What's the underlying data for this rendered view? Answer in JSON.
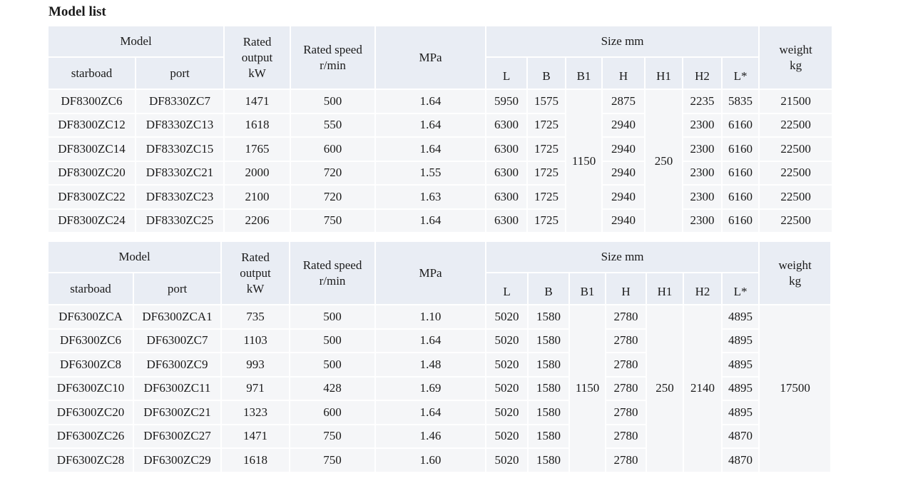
{
  "page_title": "Model list",
  "tables": [
    {
      "header": {
        "model": "Model",
        "starboard": "starboad",
        "port": "port",
        "rated_output": [
          "Rated",
          "output",
          "kW"
        ],
        "rated_speed": [
          "Rated speed",
          "r/min"
        ],
        "pressure": "MPa",
        "size": "Size mm",
        "size_cols": [
          "L",
          "B",
          "B1",
          "H",
          "H1",
          "H2",
          "L*"
        ],
        "weight": [
          "weight",
          "kg"
        ]
      },
      "shared": {
        "B1": "1150",
        "H1": "250"
      },
      "rows": [
        {
          "starboard": "DF8300ZC6",
          "port": "DF8330ZC7",
          "output": "1471",
          "speed": "500",
          "mpa": "1.64",
          "L": "5950",
          "B": "1575",
          "H": "2875",
          "H2": "2235",
          "Lstar": "5835",
          "weight": "21500"
        },
        {
          "starboard": "DF8300ZC12",
          "port": "DF8330ZC13",
          "output": "1618",
          "speed": "550",
          "mpa": "1.64",
          "L": "6300",
          "B": "1725",
          "H": "2940",
          "H2": "2300",
          "Lstar": "6160",
          "weight": "22500"
        },
        {
          "starboard": "DF8300ZC14",
          "port": "DF8330ZC15",
          "output": "1765",
          "speed": "600",
          "mpa": "1.64",
          "L": "6300",
          "B": "1725",
          "H": "2940",
          "H2": "2300",
          "Lstar": "6160",
          "weight": "22500"
        },
        {
          "starboard": "DF8300ZC20",
          "port": "DF8330ZC21",
          "output": "2000",
          "speed": "720",
          "mpa": "1.55",
          "L": "6300",
          "B": "1725",
          "H": "2940",
          "H2": "2300",
          "Lstar": "6160",
          "weight": "22500"
        },
        {
          "starboard": "DF8300ZC22",
          "port": "DF8330ZC23",
          "output": "2100",
          "speed": "720",
          "mpa": "1.63",
          "L": "6300",
          "B": "1725",
          "H": "2940",
          "H2": "2300",
          "Lstar": "6160",
          "weight": "22500"
        },
        {
          "starboard": "DF8300ZC24",
          "port": "DF8330ZC25",
          "output": "2206",
          "speed": "750",
          "mpa": "1.64",
          "L": "6300",
          "B": "1725",
          "H": "2940",
          "H2": "2300",
          "Lstar": "6160",
          "weight": "22500"
        }
      ]
    },
    {
      "header": {
        "model": "Model",
        "starboard": "starboad",
        "port": "port",
        "rated_output": [
          "Rated",
          "output",
          "kW"
        ],
        "rated_speed": [
          "Rated speed",
          "r/min"
        ],
        "pressure": "MPa",
        "size": "Size mm",
        "size_cols": [
          "L",
          "B",
          "B1",
          "H",
          "H1",
          "H2",
          "L*"
        ],
        "weight": [
          "weight",
          "kg"
        ]
      },
      "shared": {
        "B1": "1150",
        "H1": "250",
        "H2": "2140",
        "weight": "17500"
      },
      "rows": [
        {
          "starboard": "DF6300ZCA",
          "port": "DF6300ZCA1",
          "output": "735",
          "speed": "500",
          "mpa": "1.10",
          "L": "5020",
          "B": "1580",
          "H": "2780",
          "Lstar": "4895"
        },
        {
          "starboard": "DF6300ZC6",
          "port": "DF6300ZC7",
          "output": "1103",
          "speed": "500",
          "mpa": "1.64",
          "L": "5020",
          "B": "1580",
          "H": "2780",
          "Lstar": "4895"
        },
        {
          "starboard": "DF6300ZC8",
          "port": "DF6300ZC9",
          "output": "993",
          "speed": "500",
          "mpa": "1.48",
          "L": "5020",
          "B": "1580",
          "H": "2780",
          "Lstar": "4895"
        },
        {
          "starboard": "DF6300ZC10",
          "port": "DF6300ZC11",
          "output": "971",
          "speed": "428",
          "mpa": "1.69",
          "L": "5020",
          "B": "1580",
          "H": "2780",
          "Lstar": "4895"
        },
        {
          "starboard": "DF6300ZC20",
          "port": "DF6300ZC21",
          "output": "1323",
          "speed": "600",
          "mpa": "1.64",
          "L": "5020",
          "B": "1580",
          "H": "2780",
          "Lstar": "4895"
        },
        {
          "starboard": "DF6300ZC26",
          "port": "DF6300ZC27",
          "output": "1471",
          "speed": "750",
          "mpa": "1.46",
          "L": "5020",
          "B": "1580",
          "H": "2780",
          "Lstar": "4870"
        },
        {
          "starboard": "DF6300ZC28",
          "port": "DF6300ZC29",
          "output": "1618",
          "speed": "750",
          "mpa": "1.60",
          "L": "5020",
          "B": "1580",
          "H": "2780",
          "Lstar": "4870"
        }
      ]
    }
  ]
}
